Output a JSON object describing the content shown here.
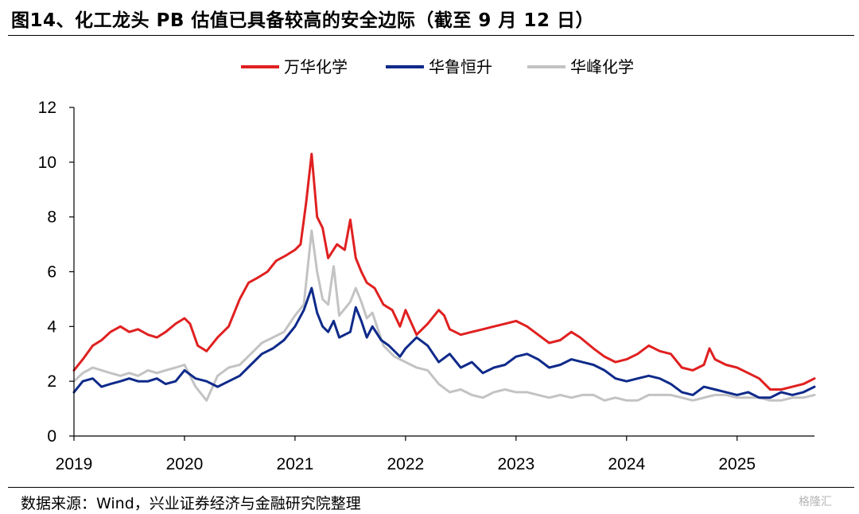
{
  "header": {
    "title": "图14、化工龙头 PB 估值已具备较高的安全边际（截至 9 月 12 日）"
  },
  "footer": {
    "source": "数据来源：Wind，兴业证券经济与金融研究院整理",
    "watermark": "格隆汇"
  },
  "colors": {
    "wanhua": "#e02020",
    "hualu": "#0f2a8a",
    "huafeng": "#c3c3c3",
    "axis": "#000000"
  },
  "chart_data": {
    "type": "line",
    "title": "",
    "xlabel": "",
    "ylabel": "",
    "ylim": [
      0,
      12
    ],
    "yticks": [
      "0",
      "2",
      "4",
      "6",
      "8",
      "10",
      "12"
    ],
    "xlim": [
      2019.0,
      2025.7
    ],
    "xticks": [
      "2019",
      "2020",
      "2021",
      "2022",
      "2023",
      "2024",
      "2025"
    ],
    "grid": false,
    "legend_position": "top-center",
    "series": [
      {
        "name": "万华化学",
        "color": "#e02020",
        "x": [
          2019.0,
          2019.08,
          2019.17,
          2019.25,
          2019.33,
          2019.42,
          2019.5,
          2019.58,
          2019.67,
          2019.75,
          2019.83,
          2019.92,
          2020.0,
          2020.05,
          2020.12,
          2020.2,
          2020.3,
          2020.4,
          2020.5,
          2020.58,
          2020.67,
          2020.75,
          2020.83,
          2020.92,
          2021.0,
          2021.05,
          2021.1,
          2021.15,
          2021.2,
          2021.25,
          2021.3,
          2021.38,
          2021.45,
          2021.5,
          2021.55,
          2021.6,
          2021.65,
          2021.72,
          2021.8,
          2021.88,
          2021.95,
          2022.0,
          2022.1,
          2022.2,
          2022.3,
          2022.35,
          2022.4,
          2022.5,
          2022.6,
          2022.7,
          2022.8,
          2022.9,
          2023.0,
          2023.1,
          2023.2,
          2023.3,
          2023.4,
          2023.5,
          2023.58,
          2023.7,
          2023.8,
          2023.9,
          2024.0,
          2024.1,
          2024.2,
          2024.3,
          2024.4,
          2024.5,
          2024.6,
          2024.7,
          2024.75,
          2024.8,
          2024.9,
          2025.0,
          2025.1,
          2025.2,
          2025.3,
          2025.4,
          2025.5,
          2025.6,
          2025.7
        ],
        "values": [
          2.4,
          2.8,
          3.3,
          3.5,
          3.8,
          4.0,
          3.8,
          3.9,
          3.7,
          3.6,
          3.8,
          4.1,
          4.3,
          4.1,
          3.3,
          3.1,
          3.6,
          4.0,
          5.0,
          5.6,
          5.8,
          6.0,
          6.4,
          6.6,
          6.8,
          7.0,
          8.5,
          10.3,
          8.0,
          7.6,
          6.5,
          7.0,
          6.8,
          7.9,
          6.5,
          6.0,
          5.6,
          5.4,
          4.8,
          4.6,
          4.0,
          4.6,
          3.7,
          4.1,
          4.6,
          4.4,
          3.9,
          3.7,
          3.8,
          3.9,
          4.0,
          4.1,
          4.2,
          4.0,
          3.7,
          3.4,
          3.5,
          3.8,
          3.6,
          3.2,
          2.9,
          2.7,
          2.8,
          3.0,
          3.3,
          3.1,
          3.0,
          2.5,
          2.4,
          2.6,
          3.2,
          2.8,
          2.6,
          2.5,
          2.3,
          2.1,
          1.7,
          1.7,
          1.8,
          1.9,
          2.1
        ]
      },
      {
        "name": "华鲁恒升",
        "color": "#0f2a8a",
        "x": [
          2019.0,
          2019.08,
          2019.17,
          2019.25,
          2019.33,
          2019.42,
          2019.5,
          2019.58,
          2019.67,
          2019.75,
          2019.83,
          2019.92,
          2020.0,
          2020.1,
          2020.2,
          2020.3,
          2020.4,
          2020.5,
          2020.6,
          2020.7,
          2020.8,
          2020.9,
          2021.0,
          2021.08,
          2021.15,
          2021.2,
          2021.25,
          2021.3,
          2021.35,
          2021.4,
          2021.5,
          2021.55,
          2021.6,
          2021.65,
          2021.7,
          2021.78,
          2021.85,
          2021.95,
          2022.0,
          2022.1,
          2022.2,
          2022.3,
          2022.4,
          2022.5,
          2022.6,
          2022.7,
          2022.8,
          2022.9,
          2023.0,
          2023.1,
          2023.2,
          2023.3,
          2023.4,
          2023.5,
          2023.6,
          2023.7,
          2023.8,
          2023.9,
          2024.0,
          2024.1,
          2024.2,
          2024.3,
          2024.4,
          2024.5,
          2024.6,
          2024.7,
          2024.8,
          2024.9,
          2025.0,
          2025.1,
          2025.2,
          2025.3,
          2025.4,
          2025.5,
          2025.6,
          2025.7
        ],
        "values": [
          1.6,
          2.0,
          2.1,
          1.8,
          1.9,
          2.0,
          2.1,
          2.0,
          2.0,
          2.1,
          1.9,
          2.0,
          2.4,
          2.1,
          2.0,
          1.8,
          2.0,
          2.2,
          2.6,
          3.0,
          3.2,
          3.5,
          4.0,
          4.6,
          5.4,
          4.5,
          4.0,
          3.8,
          4.2,
          3.6,
          3.8,
          4.7,
          4.2,
          3.6,
          4.0,
          3.5,
          3.3,
          2.9,
          3.2,
          3.6,
          3.3,
          2.7,
          3.0,
          2.5,
          2.7,
          2.3,
          2.5,
          2.6,
          2.9,
          3.0,
          2.8,
          2.5,
          2.6,
          2.8,
          2.7,
          2.6,
          2.4,
          2.1,
          2.0,
          2.1,
          2.2,
          2.1,
          1.9,
          1.6,
          1.5,
          1.8,
          1.7,
          1.6,
          1.5,
          1.6,
          1.4,
          1.4,
          1.6,
          1.5,
          1.6,
          1.8
        ]
      },
      {
        "name": "华峰化学",
        "color": "#c3c3c3",
        "x": [
          2019.0,
          2019.08,
          2019.17,
          2019.25,
          2019.33,
          2019.42,
          2019.5,
          2019.58,
          2019.67,
          2019.75,
          2019.83,
          2019.92,
          2020.0,
          2020.1,
          2020.2,
          2020.3,
          2020.4,
          2020.5,
          2020.6,
          2020.7,
          2020.8,
          2020.9,
          2021.0,
          2021.08,
          2021.15,
          2021.2,
          2021.25,
          2021.3,
          2021.35,
          2021.4,
          2021.5,
          2021.55,
          2021.6,
          2021.65,
          2021.7,
          2021.8,
          2021.9,
          2022.0,
          2022.1,
          2022.2,
          2022.3,
          2022.4,
          2022.5,
          2022.6,
          2022.7,
          2022.8,
          2022.9,
          2023.0,
          2023.1,
          2023.2,
          2023.3,
          2023.4,
          2023.5,
          2023.6,
          2023.7,
          2023.8,
          2023.9,
          2024.0,
          2024.1,
          2024.2,
          2024.3,
          2024.4,
          2024.5,
          2024.6,
          2024.7,
          2024.8,
          2024.9,
          2025.0,
          2025.1,
          2025.2,
          2025.3,
          2025.4,
          2025.5,
          2025.6,
          2025.7
        ],
        "values": [
          2.0,
          2.3,
          2.5,
          2.4,
          2.3,
          2.2,
          2.3,
          2.2,
          2.4,
          2.3,
          2.4,
          2.5,
          2.6,
          1.8,
          1.3,
          2.2,
          2.5,
          2.6,
          3.0,
          3.4,
          3.6,
          3.8,
          4.4,
          4.8,
          7.5,
          6.0,
          5.0,
          4.8,
          6.2,
          4.4,
          4.9,
          5.4,
          4.9,
          4.3,
          4.5,
          3.3,
          2.9,
          2.7,
          2.5,
          2.4,
          1.9,
          1.6,
          1.7,
          1.5,
          1.4,
          1.6,
          1.7,
          1.6,
          1.6,
          1.5,
          1.4,
          1.5,
          1.4,
          1.5,
          1.5,
          1.3,
          1.4,
          1.3,
          1.3,
          1.5,
          1.5,
          1.5,
          1.4,
          1.3,
          1.4,
          1.5,
          1.5,
          1.4,
          1.4,
          1.4,
          1.3,
          1.3,
          1.4,
          1.4,
          1.5
        ]
      }
    ]
  }
}
